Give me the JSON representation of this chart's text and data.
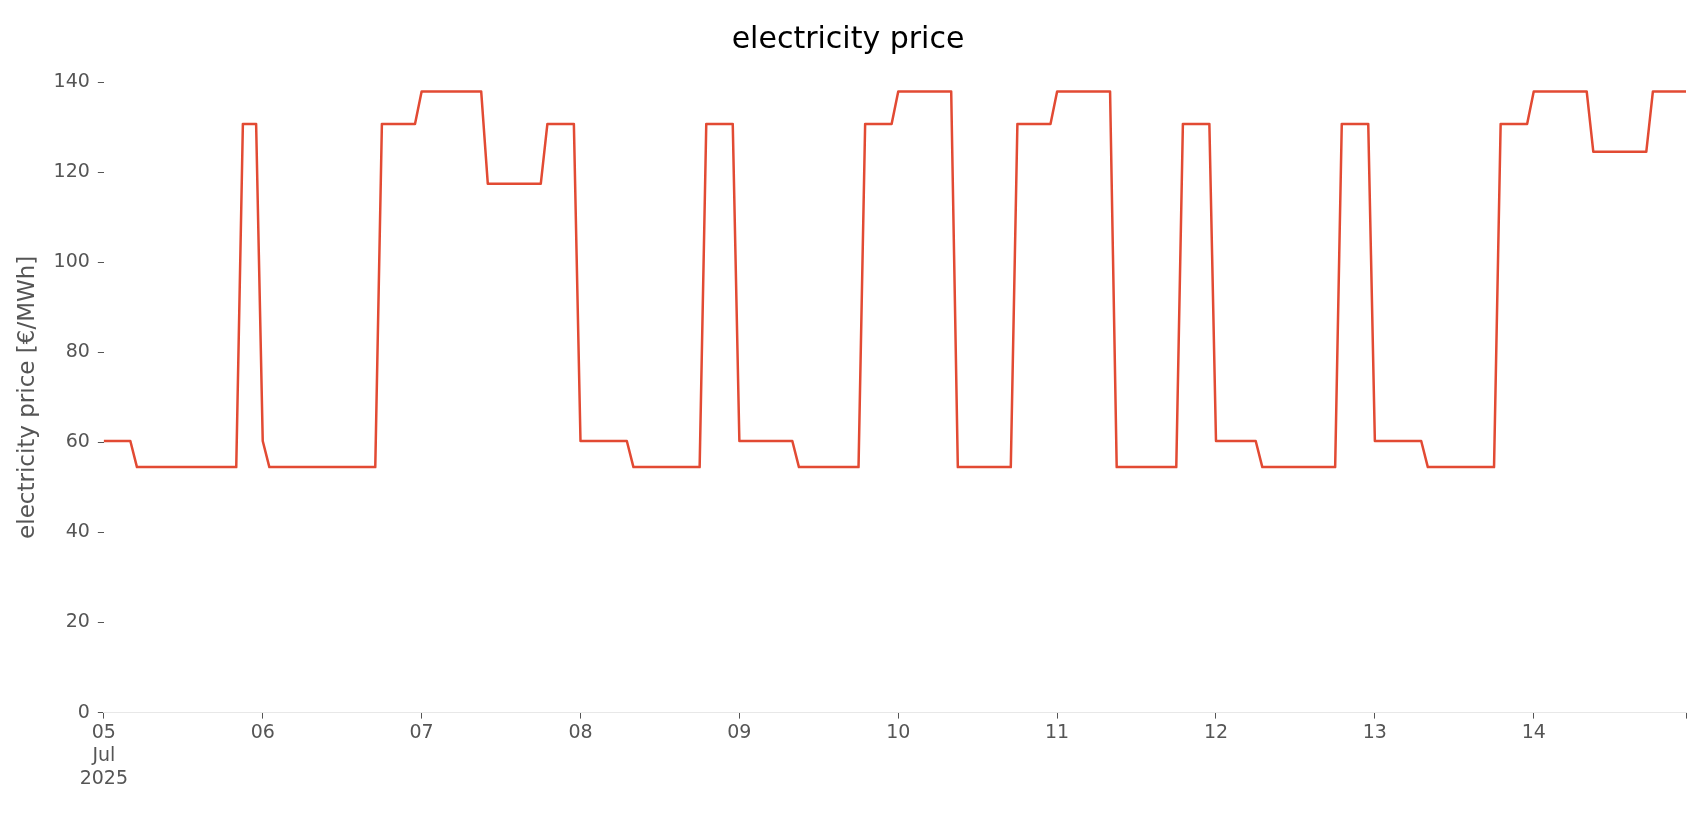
{
  "chart_data": {
    "type": "line",
    "title": "electricity price",
    "ylabel": "electricity price [€/MWh]",
    "x": [
      "2025-07-05T00:00",
      "2025-07-05T04:00",
      "2025-07-05T05:00",
      "2025-07-05T20:00",
      "2025-07-05T21:00",
      "2025-07-05T23:00",
      "2025-07-06T00:00",
      "2025-07-06T01:00",
      "2025-07-06T17:00",
      "2025-07-06T18:00",
      "2025-07-06T23:00",
      "2025-07-07T00:00",
      "2025-07-07T09:00",
      "2025-07-07T10:00",
      "2025-07-07T18:00",
      "2025-07-07T19:00",
      "2025-07-07T23:00",
      "2025-07-08T00:00",
      "2025-07-08T07:00",
      "2025-07-08T08:00",
      "2025-07-08T18:00",
      "2025-07-08T19:00",
      "2025-07-08T23:00",
      "2025-07-09T00:00",
      "2025-07-09T08:00",
      "2025-07-09T09:00",
      "2025-07-09T18:00",
      "2025-07-09T19:00",
      "2025-07-09T23:00",
      "2025-07-10T00:00",
      "2025-07-10T08:00",
      "2025-07-10T09:00",
      "2025-07-10T17:00",
      "2025-07-10T18:00",
      "2025-07-10T23:00",
      "2025-07-11T00:00",
      "2025-07-11T08:00",
      "2025-07-11T09:00",
      "2025-07-11T18:00",
      "2025-07-11T19:00",
      "2025-07-11T23:00",
      "2025-07-12T00:00",
      "2025-07-12T06:00",
      "2025-07-12T07:00",
      "2025-07-12T18:00",
      "2025-07-12T19:00",
      "2025-07-12T23:00",
      "2025-07-13T00:00",
      "2025-07-13T07:00",
      "2025-07-13T08:00",
      "2025-07-13T18:00",
      "2025-07-13T19:00",
      "2025-07-13T23:00",
      "2025-07-14T00:00",
      "2025-07-14T08:00",
      "2025-07-14T09:00",
      "2025-07-14T17:00",
      "2025-07-14T18:00",
      "2025-07-14T23:00"
    ],
    "series": [
      {
        "color": "#e24a33",
        "values": [
          60.3,
          60.3,
          54.5,
          54.5,
          130.7,
          130.7,
          60.3,
          54.5,
          54.5,
          130.7,
          130.7,
          137.9,
          137.9,
          117.4,
          117.4,
          130.7,
          130.7,
          60.3,
          60.3,
          54.5,
          54.5,
          130.7,
          130.7,
          60.3,
          60.3,
          54.5,
          54.5,
          130.7,
          130.7,
          137.9,
          137.9,
          54.5,
          54.5,
          130.7,
          130.7,
          137.9,
          137.9,
          54.5,
          54.5,
          130.7,
          130.7,
          60.3,
          60.3,
          54.5,
          54.5,
          130.7,
          130.7,
          60.3,
          60.3,
          54.5,
          54.5,
          130.7,
          130.7,
          137.9,
          137.9,
          124.5,
          124.5,
          137.9,
          137.9
        ]
      }
    ],
    "xticks": [
      {
        "value": "2025-07-05T00:00",
        "label": "05\nJul\n2025"
      },
      {
        "value": "2025-07-06T00:00",
        "label": "06"
      },
      {
        "value": "2025-07-07T00:00",
        "label": "07"
      },
      {
        "value": "2025-07-08T00:00",
        "label": "08"
      },
      {
        "value": "2025-07-09T00:00",
        "label": "09"
      },
      {
        "value": "2025-07-10T00:00",
        "label": "10"
      },
      {
        "value": "2025-07-11T00:00",
        "label": "11"
      },
      {
        "value": "2025-07-12T00:00",
        "label": "12"
      },
      {
        "value": "2025-07-13T00:00",
        "label": "13"
      },
      {
        "value": "2025-07-14T00:00",
        "label": "14"
      },
      {
        "value": "2025-07-14T23:00",
        "label": null
      }
    ],
    "xlim": [
      "2025-07-05T00:00",
      "2025-07-14T23:00"
    ],
    "ylim": [
      0,
      140
    ],
    "yticks": [
      0,
      20,
      40,
      60,
      80,
      100,
      120,
      140
    ],
    "grid": false,
    "legend": false,
    "marker": "none",
    "line_style": "solid"
  }
}
